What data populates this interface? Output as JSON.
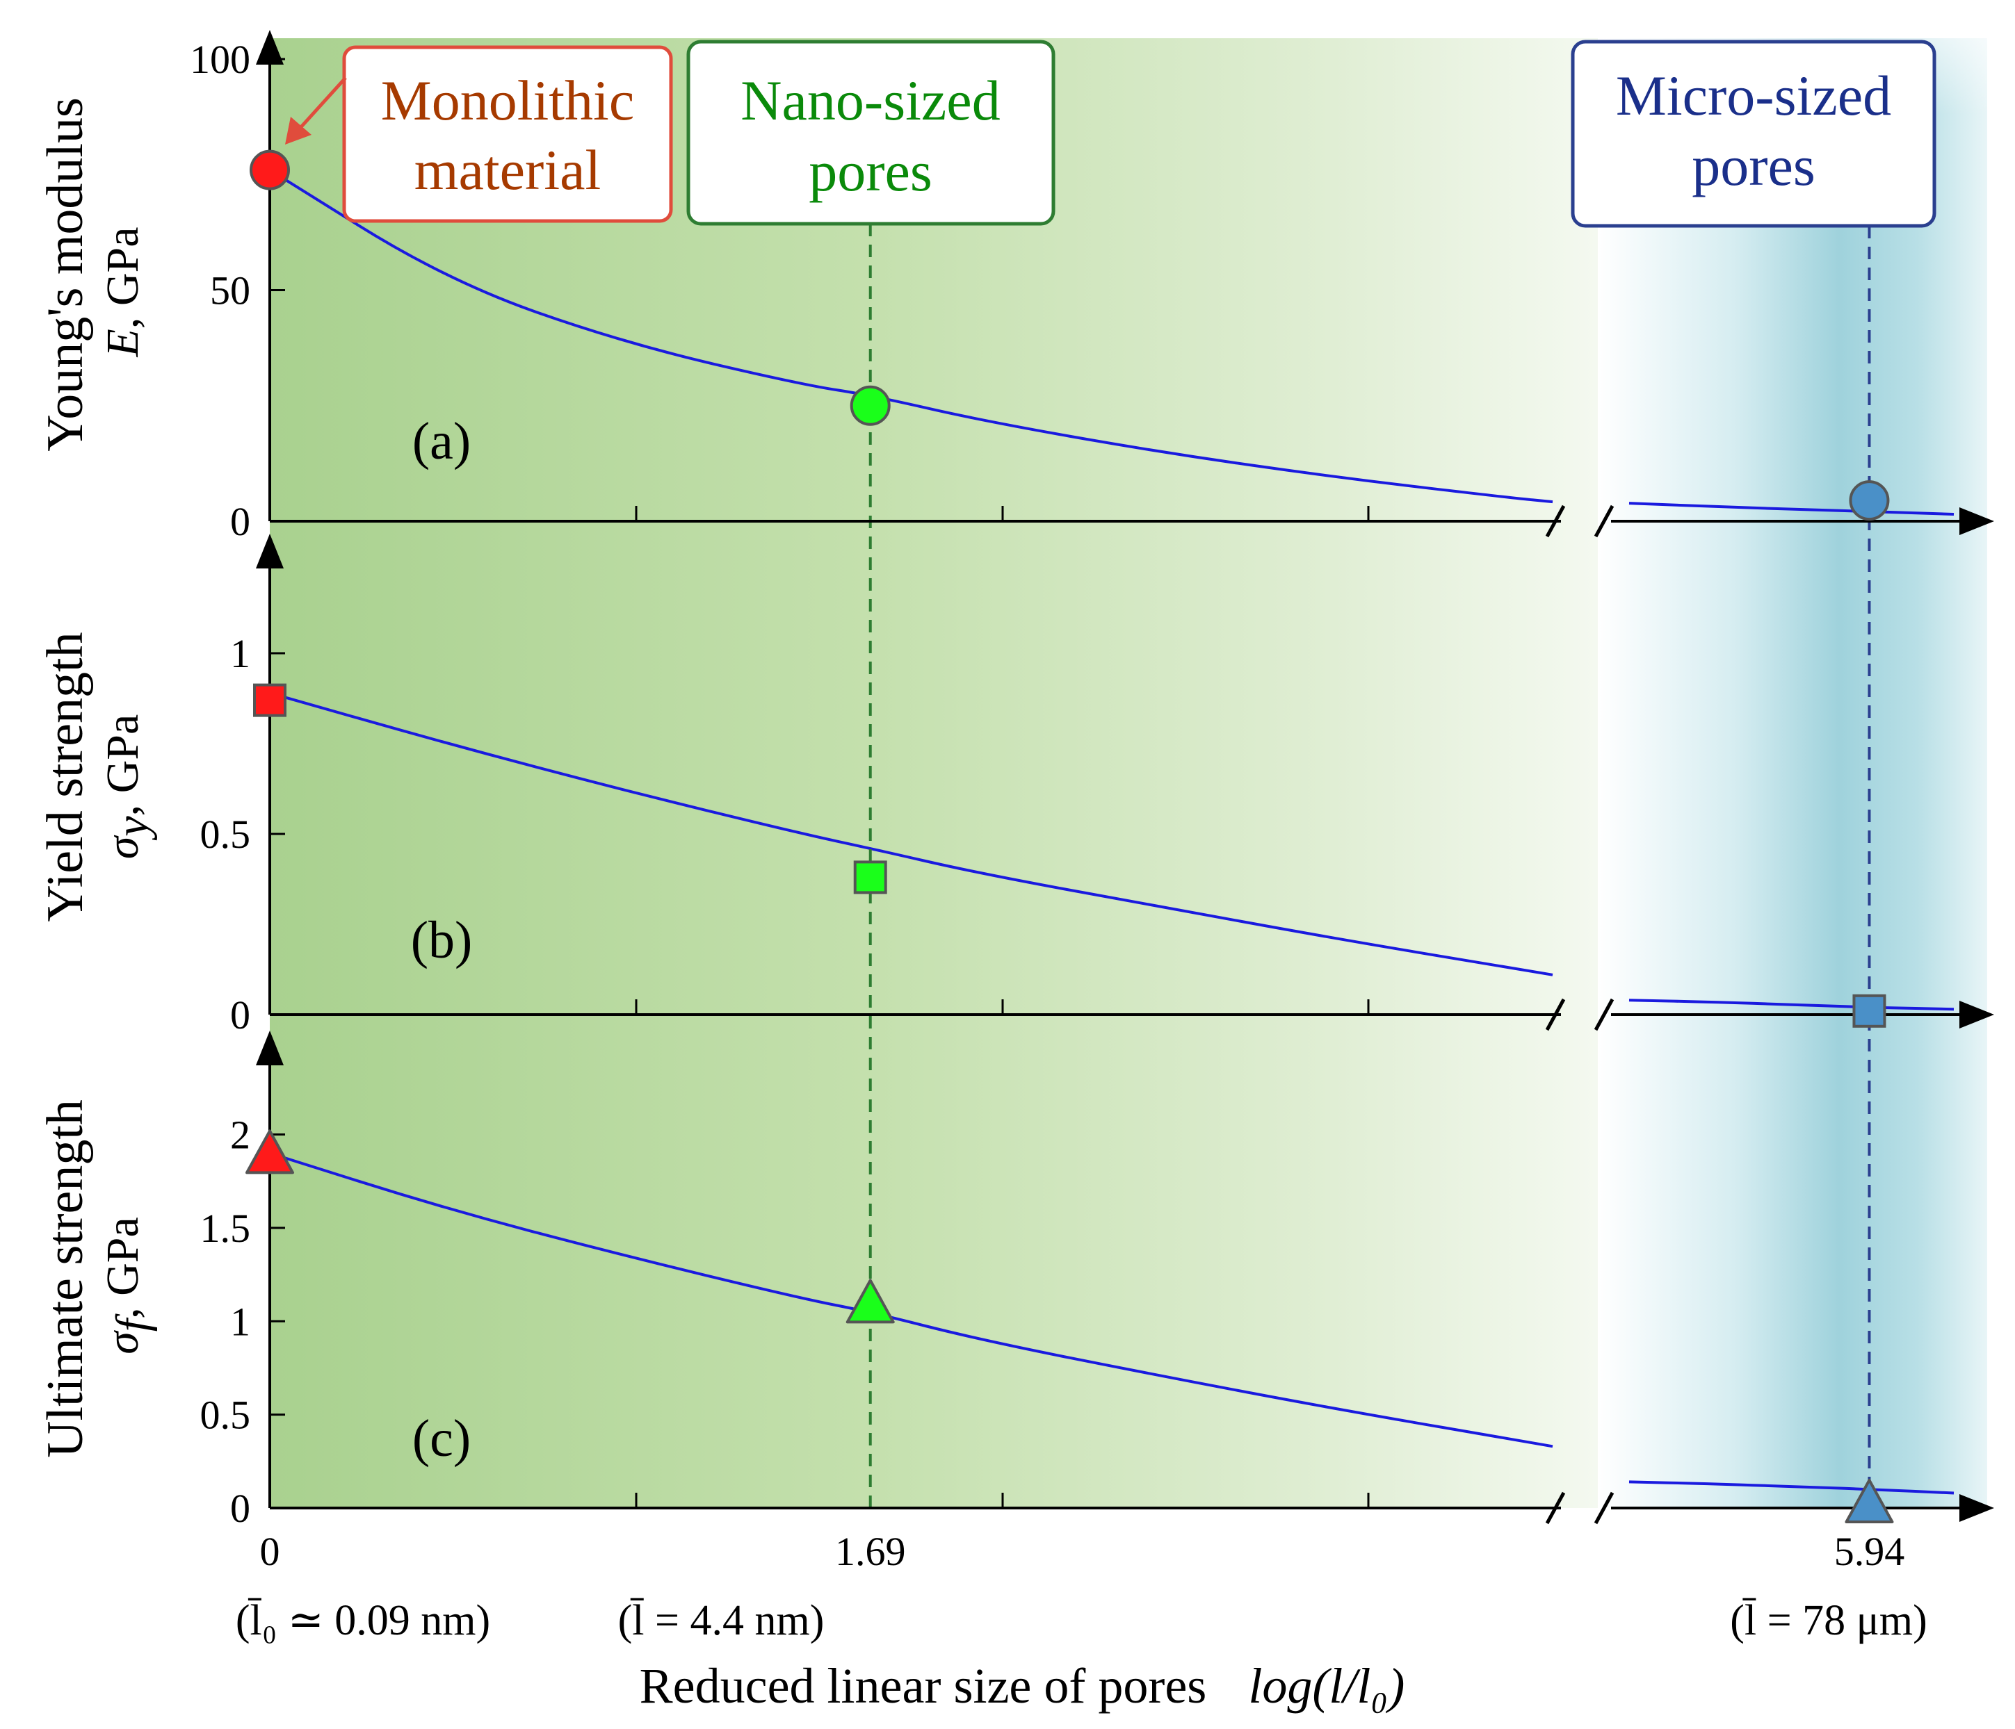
{
  "colors": {
    "curve": "#1a1adf",
    "monolithic": "#ff1a1a",
    "nano": "#1aff1a",
    "micro": "#4a90c8",
    "marker_edge": "#555555",
    "monolithic_box": "#e04c3c",
    "monolithic_text": "#a63a00",
    "nano_box": "#2e7d32",
    "nano_text": "#0a8a0a",
    "micro_box": "#2a3f8f",
    "micro_text": "#1a2f8a",
    "bg_green": "#b2d69c",
    "bg_teal": "#9fd4dd"
  },
  "annotations": {
    "monolithic": "Monolithic material",
    "monolithic_l1": "Monolithic",
    "monolithic_l2": "material",
    "nano": "Nano-sized pores",
    "nano_l1": "Nano-sized",
    "nano_l2": "pores",
    "micro": "Micro-sized pores",
    "micro_l1": "Micro-sized",
    "micro_l2": "pores"
  },
  "x_axis": {
    "title": "Reduced linear size of pores",
    "title_expr": "log(l/l₀)",
    "tick_labels": [
      "0",
      "1.69",
      "5.94"
    ],
    "notes": [
      "(l̄₀ ≃ 0.09 nm)",
      "(l̄ = 4.4 nm)",
      "(l̄ = 78 μm)"
    ]
  },
  "chart_data": [
    {
      "type": "line",
      "panel": "(a)",
      "title": "",
      "ylabel": "Young's modulus",
      "ylabel_symbol": "E",
      "ylabel_unit": ", GPa",
      "xlabel": "Reduced linear size of pores log(l/l₀)",
      "xlim": [
        0,
        6.75
      ],
      "ylim": [
        0,
        100
      ],
      "y_ticks": [
        0,
        50,
        100
      ],
      "y_tick_labels": [
        "0",
        "50",
        "100"
      ],
      "x_break": [
        3.61,
        3.78
      ],
      "grid": false,
      "series": [
        {
          "name": "model",
          "x": [
            0,
            0.5,
            1,
            1.5,
            1.69,
            2,
            2.5,
            3,
            3.5,
            3.61,
            3.78,
            4.5,
            5.5,
            5.94,
            6.7
          ],
          "values": [
            76,
            52,
            38.5,
            29.5,
            27.3,
            21.8,
            15,
            9.5,
            5,
            4.2,
            3.9,
            3.2,
            2.4,
            2.1,
            1.5
          ]
        },
        {
          "name": "Monolithic material",
          "marker": "circle",
          "x": [
            0
          ],
          "values": [
            76
          ]
        },
        {
          "name": "Nano-sized pores",
          "marker": "circle",
          "x": [
            1.69
          ],
          "values": [
            25
          ]
        },
        {
          "name": "Micro-sized pores",
          "marker": "circle",
          "x": [
            5.94
          ],
          "values": [
            4.5
          ]
        }
      ]
    },
    {
      "type": "line",
      "panel": "(b)",
      "title": "",
      "ylabel": "Yield strength",
      "ylabel_symbol": "σ",
      "ylabel_sub": "y",
      "ylabel_unit": ", GPa",
      "xlabel": "Reduced linear size of pores log(l/l₀)",
      "xlim": [
        0,
        6.75
      ],
      "ylim": [
        0,
        1.25
      ],
      "y_ticks": [
        0,
        0.5,
        1
      ],
      "y_tick_labels": [
        "0",
        "0.5",
        "1"
      ],
      "x_break": [
        3.61,
        3.78
      ],
      "grid": false,
      "series": [
        {
          "name": "model",
          "x": [
            0,
            0.5,
            1,
            1.5,
            1.69,
            2,
            2.5,
            3,
            3.61,
            3.78,
            4.5,
            5.5,
            5.94,
            6.7
          ],
          "values": [
            0.89,
            0.75,
            0.62,
            0.5,
            0.46,
            0.39,
            0.3,
            0.21,
            0.11,
            0.04,
            0.035,
            0.025,
            0.02,
            0.015
          ]
        },
        {
          "name": "Monolithic material",
          "marker": "square",
          "x": [
            0
          ],
          "values": [
            0.87
          ]
        },
        {
          "name": "Nano-sized pores",
          "marker": "square",
          "x": [
            1.69
          ],
          "values": [
            0.38
          ]
        },
        {
          "name": "Micro-sized pores",
          "marker": "square",
          "x": [
            5.94
          ],
          "values": [
            0.01
          ]
        }
      ]
    },
    {
      "type": "line",
      "panel": "(c)",
      "title": "",
      "ylabel": "Ultimate strength",
      "ylabel_symbol": "σ",
      "ylabel_sub": "f",
      "ylabel_unit": ", GPa",
      "xlabel": "Reduced linear size of pores log(l/l₀)",
      "xlim": [
        0,
        6.75
      ],
      "ylim": [
        0,
        2.4
      ],
      "y_ticks": [
        0,
        0.5,
        1,
        1.5,
        2
      ],
      "y_tick_labels": [
        "0",
        "0.5",
        "1",
        "1.5",
        "2"
      ],
      "x_break": [
        3.61,
        3.78
      ],
      "grid": false,
      "series": [
        {
          "name": "model",
          "x": [
            0,
            0.5,
            1,
            1.5,
            1.69,
            2,
            2.5,
            3,
            3.61,
            3.78,
            4.5,
            5.5,
            5.94,
            6.7
          ],
          "values": [
            1.9,
            1.6,
            1.35,
            1.12,
            1.05,
            0.9,
            0.71,
            0.53,
            0.33,
            0.14,
            0.13,
            0.11,
            0.1,
            0.08
          ]
        },
        {
          "name": "Monolithic material",
          "marker": "triangle",
          "x": [
            0
          ],
          "values": [
            1.9
          ]
        },
        {
          "name": "Nano-sized pores",
          "marker": "triangle",
          "x": [
            1.69
          ],
          "values": [
            1.1
          ]
        },
        {
          "name": "Micro-sized pores",
          "marker": "triangle",
          "x": [
            5.94
          ],
          "values": [
            0.03
          ]
        }
      ]
    }
  ]
}
